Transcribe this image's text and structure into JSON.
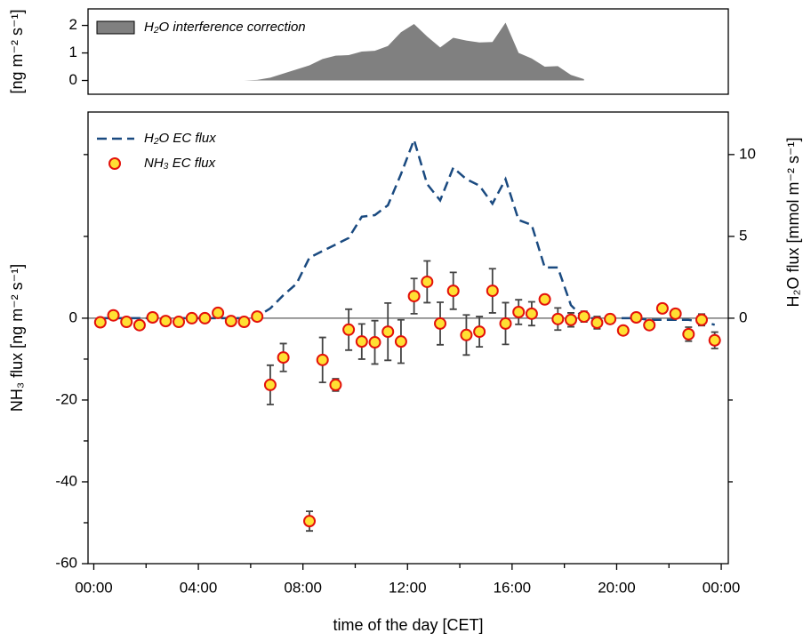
{
  "chart_data": [
    {
      "type": "area",
      "y_label": "[ng m⁻² s⁻¹]",
      "legend": "upper left",
      "xlim": [
        -0.22,
        24.27
      ],
      "ylim": [
        -0.5,
        2.6
      ],
      "yticks": [
        0,
        1,
        2
      ],
      "series": [
        {
          "name": "H₂O interference correction",
          "type": "area",
          "color": "#808080",
          "x": [
            5.75,
            6.25,
            6.75,
            7.25,
            7.75,
            8.25,
            8.75,
            9.25,
            9.75,
            10.25,
            10.75,
            11.25,
            11.75,
            12.25,
            12.75,
            13.25,
            13.75,
            14.25,
            14.75,
            15.25,
            15.75,
            16.25,
            16.75,
            17.25,
            17.75,
            18.25,
            18.75
          ],
          "values": [
            0,
            0.02,
            0.1,
            0.25,
            0.4,
            0.55,
            0.78,
            0.9,
            0.92,
            1.05,
            1.08,
            1.25,
            1.75,
            2.05,
            1.6,
            1.2,
            1.55,
            1.45,
            1.38,
            1.4,
            2.1,
            1.0,
            0.8,
            0.5,
            0.52,
            0.2,
            0.05
          ]
        }
      ]
    },
    {
      "type": "scatter",
      "x_label": "time of the day [CET]",
      "y_label": "NH₃ flux [ng m⁻² s⁻¹]",
      "y2_label": "H₂O flux [mmol m⁻² s⁻¹]",
      "legend": "upper left",
      "xlim": [
        -0.22,
        24.27
      ],
      "xticks": [
        {
          "value": 0,
          "label": "00:00"
        },
        {
          "value": 4,
          "label": "04:00"
        },
        {
          "value": 8,
          "label": "08:00"
        },
        {
          "value": 12,
          "label": "12:00"
        },
        {
          "value": 16,
          "label": "16:00"
        },
        {
          "value": 20,
          "label": "20:00"
        },
        {
          "value": 24,
          "label": "00:00"
        }
      ],
      "xticks_minor": [
        2,
        6,
        10,
        14,
        18,
        22
      ],
      "ylim": [
        -60,
        50.4
      ],
      "yticks": [
        -60,
        -40,
        -20,
        0
      ],
      "yticks_minor": [
        -50,
        -30,
        -10,
        20,
        40
      ],
      "y2lim": [
        -15,
        12.6
      ],
      "y2ticks": [
        0,
        5,
        10
      ],
      "y2ticks_minor": [
        -10,
        -5
      ],
      "hlines": [
        0
      ],
      "series": [
        {
          "name": "H₂O EC flux",
          "type": "line",
          "axis": "y2",
          "color": "#1a4a80",
          "x": [
            0.25,
            0.75,
            1.25,
            1.75,
            2.25,
            2.75,
            3.25,
            3.75,
            4.25,
            4.75,
            5.25,
            5.75,
            6.25,
            6.75,
            7.25,
            7.75,
            8.25,
            8.75,
            9.25,
            9.75,
            10.25,
            10.75,
            11.25,
            11.75,
            12.25,
            12.75,
            13.25,
            13.75,
            14.25,
            14.75,
            15.25,
            15.75,
            16.25,
            16.75,
            17.25,
            17.75,
            18.25,
            18.75,
            19.25,
            19.75,
            20.25,
            20.75,
            21.25,
            21.75,
            22.25,
            22.75,
            23.25,
            23.75
          ],
          "values": [
            0,
            0,
            0,
            0,
            0,
            0,
            0,
            0,
            0,
            0,
            0,
            0,
            0.1,
            0.6,
            1.4,
            2.1,
            3.7,
            4.1,
            4.5,
            4.9,
            6.2,
            6.3,
            6.9,
            8.8,
            10.9,
            8.2,
            7.2,
            9.2,
            8.5,
            8.1,
            7.0,
            8.5,
            6.0,
            5.7,
            3.1,
            3.1,
            0.8,
            0,
            0,
            0,
            0,
            0,
            -0.1,
            -0.1,
            -0.1,
            -0.1,
            -0.2,
            -0.4
          ]
        },
        {
          "name": "NH₃ EC flux",
          "type": "scatter",
          "color": "#ffe033",
          "edgecolor": "#e3120b",
          "x": [
            0.25,
            0.75,
            1.25,
            1.75,
            2.25,
            2.75,
            3.25,
            3.75,
            4.25,
            4.75,
            5.25,
            5.75,
            6.25,
            6.75,
            7.25,
            8.25,
            8.75,
            9.25,
            9.75,
            10.25,
            10.75,
            11.25,
            11.75,
            12.25,
            12.75,
            13.25,
            13.75,
            14.25,
            14.75,
            15.25,
            15.75,
            16.25,
            16.75,
            17.25,
            17.75,
            18.25,
            18.75,
            19.25,
            19.75,
            20.25,
            20.75,
            21.25,
            21.75,
            22.25,
            22.75,
            23.25,
            23.75
          ],
          "values": [
            -1,
            0.7,
            -0.9,
            -1.7,
            0.2,
            -0.7,
            -0.9,
            0,
            0,
            1.3,
            -0.7,
            -0.9,
            0.4,
            -16.3,
            -9.6,
            -49.6,
            -10.2,
            -16.3,
            -2.8,
            -5.7,
            -5.9,
            -3.3,
            -5.7,
            5.4,
            8.9,
            -1.3,
            6.7,
            -4.1,
            -3.3,
            6.7,
            -1.3,
            1.5,
            1.1,
            4.6,
            -0.2,
            -0.4,
            0.4,
            -1.1,
            -0.2,
            -3,
            0.2,
            -1.7,
            2.4,
            1.1,
            -3.9,
            -0.4,
            -5.4
          ],
          "errors": [
            null,
            null,
            null,
            null,
            null,
            null,
            null,
            null,
            null,
            null,
            null,
            null,
            null,
            4.8,
            3.4,
            2.4,
            5.5,
            1.5,
            5,
            4.3,
            5.3,
            7,
            5.3,
            4.3,
            5.1,
            5.2,
            4.5,
            4.9,
            3.7,
            5.4,
            5.1,
            3,
            2.9,
            0.8,
            2.7,
            1.7,
            1.3,
            1.5,
            1.1,
            0.8,
            0.5,
            0.5,
            0.5,
            0.8,
            1.7,
            1.4,
            2
          ]
        }
      ]
    }
  ]
}
